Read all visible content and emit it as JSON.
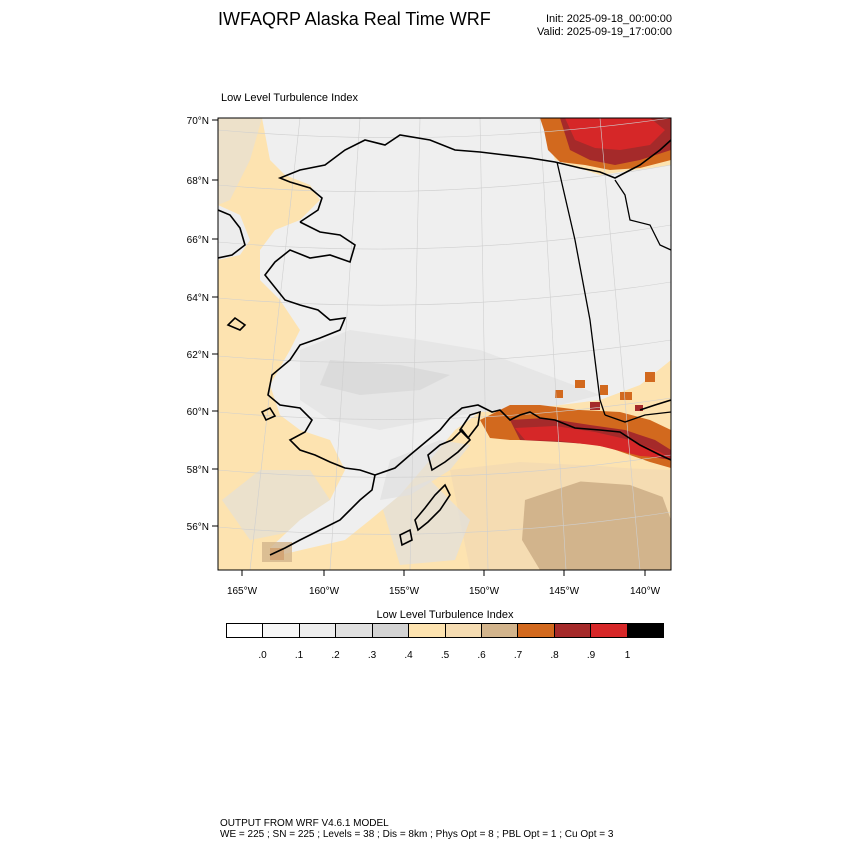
{
  "header": {
    "title": "IWFAQRP Alaska Real Time WRF",
    "init": "Init: 2025-09-18_00:00:00",
    "valid": "Valid: 2025-09-19_17:00:00"
  },
  "map": {
    "title": "Low Level Turbulence Index",
    "lat_labels": [
      "70°N",
      "68°N",
      "66°N",
      "64°N",
      "62°N",
      "60°N",
      "58°N",
      "56°N"
    ],
    "lon_labels": [
      "165°W",
      "160°W",
      "155°W",
      "150°W",
      "145°W",
      "140°W"
    ],
    "field": "Low Level Turbulence Index",
    "lat_range": [
      54.5,
      70
    ],
    "lon_range": [
      -166.5,
      -138.5
    ]
  },
  "colorbar": {
    "title": "Low Level Turbulence Index",
    "colors": [
      "#ffffff",
      "#f6f6f6",
      "#ededed",
      "#e0e0e0",
      "#d3d3d3",
      "#fde3b0",
      "#f5dcb2",
      "#d2b48c",
      "#d2691e",
      "#a52a2a",
      "#d62728",
      "#000000"
    ],
    "labels": [
      ".0",
      ".1",
      ".2",
      ".3",
      ".4",
      ".5",
      ".6",
      ".7",
      ".8",
      ".9",
      "1"
    ]
  },
  "footer": {
    "line1": "OUTPUT FROM WRF V4.6.1 MODEL",
    "line2": "WE = 225 ; SN = 225 ; Levels = 38 ; Dis = 8km ; Phys Opt = 8 ; PBL Opt = 1 ; Cu Opt = 3"
  }
}
